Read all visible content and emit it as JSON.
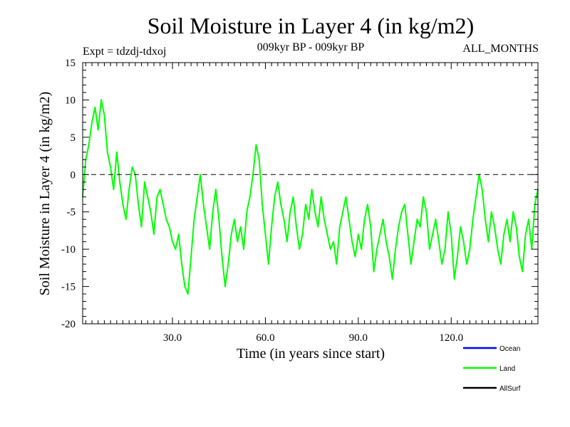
{
  "chart_data": {
    "type": "line",
    "title": "Soil Moisture in Layer 4 (in kg/m2)",
    "subtitle_left": "Expt = tdzdj-tdxoj",
    "subtitle_center": "009kyr BP - 009kyr BP",
    "subtitle_right": "ALL_MONTHS",
    "xlabel": "Time (in years since start)",
    "ylabel": "Soil Moisture in Layer 4 (in kg/m2)",
    "xlim": [
      1,
      148
    ],
    "ylim": [
      -20,
      15
    ],
    "xticks": [
      30,
      60,
      90,
      120
    ],
    "xtick_labels": [
      "30.0",
      "60.0",
      "90.0",
      "120.0"
    ],
    "yticks": [
      -20,
      -15,
      -10,
      -5,
      0,
      5,
      10,
      15
    ],
    "ytick_labels": [
      "-20",
      "-15",
      "-10",
      "-5",
      "0",
      "5",
      "10",
      "15"
    ],
    "reference_line": {
      "y": 0,
      "style": "dashed"
    },
    "legend": [
      {
        "name": "Ocean",
        "color": "#0000ff"
      },
      {
        "name": "Land",
        "color": "#00ff00"
      },
      {
        "name": "AllSurf",
        "color": "#000000"
      }
    ],
    "series": [
      {
        "name": "Land",
        "color": "#00ff00",
        "x": [
          1,
          2,
          3,
          4,
          5,
          6,
          7,
          8,
          9,
          10,
          11,
          12,
          13,
          14,
          15,
          16,
          17,
          18,
          19,
          20,
          21,
          22,
          23,
          24,
          25,
          26,
          27,
          28,
          29,
          30,
          31,
          32,
          33,
          34,
          35,
          36,
          37,
          38,
          39,
          40,
          41,
          42,
          43,
          44,
          45,
          46,
          47,
          48,
          49,
          50,
          51,
          52,
          53,
          54,
          55,
          56,
          57,
          58,
          59,
          60,
          61,
          62,
          63,
          64,
          65,
          66,
          67,
          68,
          69,
          70,
          71,
          72,
          73,
          74,
          75,
          76,
          77,
          78,
          79,
          80,
          81,
          82,
          83,
          84,
          85,
          86,
          87,
          88,
          89,
          90,
          91,
          92,
          93,
          94,
          95,
          96,
          97,
          98,
          99,
          100,
          101,
          102,
          103,
          104,
          105,
          106,
          107,
          108,
          109,
          110,
          111,
          112,
          113,
          114,
          115,
          116,
          117,
          118,
          119,
          120,
          121,
          122,
          123,
          124,
          125,
          126,
          127,
          128,
          129,
          130,
          131,
          132,
          133,
          134,
          135,
          136,
          137,
          138,
          139,
          140,
          141,
          142,
          143,
          144,
          145,
          146,
          147,
          148
        ],
        "values": [
          -3,
          2,
          4,
          7,
          9,
          6,
          10,
          8,
          3,
          1,
          -2,
          3,
          -1,
          -4,
          -6,
          -2,
          1,
          0,
          -4,
          -7,
          -1,
          -3,
          -5,
          -8,
          -3,
          -2,
          -4,
          -6,
          -7,
          -9,
          -10,
          -8,
          -12,
          -15,
          -16,
          -11,
          -6,
          -3,
          0,
          -4,
          -7,
          -10,
          -5,
          -2,
          -6,
          -11,
          -15,
          -12,
          -8,
          -6,
          -9,
          -7,
          -10,
          -5,
          -3,
          0,
          4,
          2,
          -4,
          -8,
          -12,
          -7,
          -3,
          -1,
          -4,
          -6,
          -9,
          -5,
          -3,
          -7,
          -10,
          -8,
          -4,
          -6,
          -2,
          -5,
          -7,
          -3,
          -6,
          -8,
          -10,
          -9,
          -12,
          -7,
          -5,
          -3,
          -6,
          -9,
          -11,
          -8,
          -10,
          -6,
          -4,
          -7,
          -13,
          -10,
          -8,
          -6,
          -9,
          -11,
          -14,
          -10,
          -7,
          -5,
          -4,
          -8,
          -12,
          -9,
          -6,
          -7,
          -3,
          -5,
          -10,
          -8,
          -6,
          -9,
          -12,
          -10,
          -5,
          -8,
          -14,
          -11,
          -7,
          -9,
          -12,
          -10,
          -6,
          -3,
          0,
          -2,
          -6,
          -9,
          -5,
          -7,
          -10,
          -12,
          -8,
          -6,
          -9,
          -5,
          -7,
          -11,
          -13,
          -8,
          -6,
          -10,
          -4,
          -2
        ]
      }
    ]
  }
}
